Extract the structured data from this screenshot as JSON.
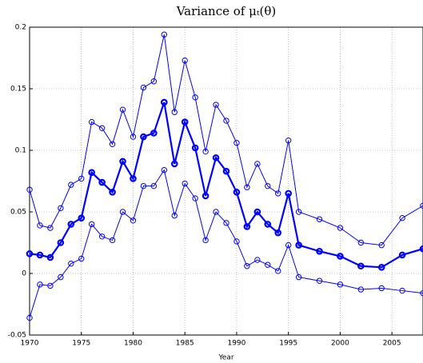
{
  "chart_data": {
    "type": "line",
    "title": "Variance of μₜ(θ)",
    "xlabel": "Year",
    "x": [
      1970,
      1971,
      1972,
      1973,
      1974,
      1975,
      1976,
      1977,
      1978,
      1979,
      1980,
      1981,
      1982,
      1983,
      1984,
      1985,
      1986,
      1987,
      1988,
      1989,
      1990,
      1991,
      1992,
      1993,
      1994,
      1995,
      1996,
      1998,
      2000,
      2002,
      2004,
      2006,
      2008
    ],
    "series": [
      {
        "color": "#0000ff",
        "line_width": 1,
        "values": [
          0.068,
          0.039,
          0.037,
          0.053,
          0.072,
          0.077,
          0.123,
          0.118,
          0.105,
          0.133,
          0.111,
          0.151,
          0.156,
          0.194,
          0.131,
          0.173,
          0.143,
          0.099,
          0.137,
          0.124,
          0.106,
          0.07,
          0.089,
          0.071,
          0.065,
          0.108,
          0.05,
          0.044,
          0.037,
          0.025,
          0.023,
          0.045,
          0.055
        ]
      },
      {
        "color": "#0000ff",
        "line_width": 2.2,
        "values": [
          0.016,
          0.015,
          0.013,
          0.025,
          0.04,
          0.045,
          0.082,
          0.074,
          0.066,
          0.091,
          0.077,
          0.111,
          0.114,
          0.139,
          0.089,
          0.123,
          0.102,
          0.063,
          0.094,
          0.083,
          0.066,
          0.038,
          0.05,
          0.04,
          0.033,
          0.065,
          0.023,
          0.018,
          0.014,
          0.006,
          0.005,
          0.015,
          0.02
        ]
      },
      {
        "color": "#0000ff",
        "line_width": 1,
        "values": [
          -0.036,
          -0.009,
          -0.01,
          -0.003,
          0.008,
          0.012,
          0.04,
          0.03,
          0.027,
          0.05,
          0.043,
          0.071,
          0.071,
          0.084,
          0.047,
          0.073,
          0.061,
          0.027,
          0.05,
          0.041,
          0.026,
          0.006,
          0.011,
          0.007,
          0.002,
          0.023,
          -0.003,
          -0.006,
          -0.009,
          -0.013,
          -0.012,
          -0.014,
          -0.016
        ]
      }
    ],
    "xlim": [
      1970,
      2008
    ],
    "xticks": [
      1970,
      1975,
      1980,
      1985,
      1990,
      1995,
      2000,
      2005
    ],
    "ylim": [
      -0.05,
      0.2
    ],
    "yticks": [
      -0.05,
      0,
      0.05,
      0.1,
      0.15,
      0.2
    ],
    "grid": true,
    "marker": "circle"
  }
}
